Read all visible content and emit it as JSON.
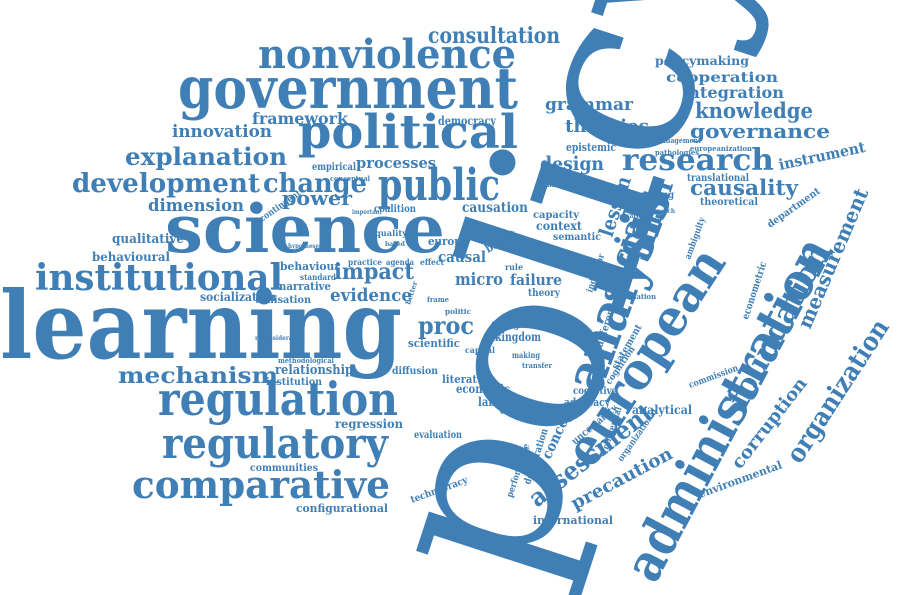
{
  "color": "#3f7fb5",
  "words": [
    {
      "id": "policy",
      "text": "policy"
    },
    {
      "id": "learning",
      "text": "learning"
    },
    {
      "id": "science",
      "text": "science"
    },
    {
      "id": "government",
      "text": "government"
    },
    {
      "id": "nonviolence",
      "text": "nonviolence"
    },
    {
      "id": "political",
      "text": "political"
    },
    {
      "id": "public",
      "text": "public"
    },
    {
      "id": "institutional",
      "text": "institutional"
    },
    {
      "id": "regulation",
      "text": "regulation"
    },
    {
      "id": "regulatory",
      "text": "regulatory"
    },
    {
      "id": "comparative",
      "text": "comparative"
    },
    {
      "id": "development",
      "text": "development"
    },
    {
      "id": "change",
      "text": "change"
    },
    {
      "id": "explanation",
      "text": "explanation"
    },
    {
      "id": "mechanism",
      "text": "mechanism"
    },
    {
      "id": "innovation",
      "text": "innovation"
    },
    {
      "id": "framework",
      "text": "framework"
    },
    {
      "id": "consultation",
      "text": "consultation"
    },
    {
      "id": "research",
      "text": "research"
    },
    {
      "id": "knowledge",
      "text": "knowledge"
    },
    {
      "id": "governance",
      "text": "governance"
    },
    {
      "id": "integration",
      "text": "integration"
    },
    {
      "id": "cooperation",
      "text": "cooperation"
    },
    {
      "id": "policymaking",
      "text": "policymaking"
    },
    {
      "id": "causality",
      "text": "causality"
    },
    {
      "id": "instrument",
      "text": "instrument"
    },
    {
      "id": "analysis",
      "text": "analysis"
    },
    {
      "id": "european",
      "text": "european"
    },
    {
      "id": "administration",
      "text": "administration"
    },
    {
      "id": "foundation",
      "text": "foundation"
    },
    {
      "id": "measurement",
      "text": "measurement"
    },
    {
      "id": "organization",
      "text": "organization"
    },
    {
      "id": "corruption",
      "text": "corruption"
    },
    {
      "id": "assessment",
      "text": "assessment"
    },
    {
      "id": "precaution",
      "text": "precaution"
    },
    {
      "id": "social",
      "text": "social"
    },
    {
      "id": "union",
      "text": "union"
    },
    {
      "id": "lesson",
      "text": "lesson"
    },
    {
      "id": "grammar",
      "text": "grammar"
    },
    {
      "id": "theories",
      "text": "theories"
    },
    {
      "id": "design",
      "text": "design"
    },
    {
      "id": "processes",
      "text": "processes"
    },
    {
      "id": "dimension",
      "text": "dimension"
    },
    {
      "id": "power",
      "text": "power"
    },
    {
      "id": "impact",
      "text": "impact"
    },
    {
      "id": "evidence",
      "text": "evidence"
    },
    {
      "id": "proc",
      "text": "proc"
    },
    {
      "id": "qualitative",
      "text": "qualitative"
    },
    {
      "id": "behavioural",
      "text": "behavioural"
    },
    {
      "id": "socialization",
      "text": "socialization"
    },
    {
      "id": "behaviour",
      "text": "behaviour"
    },
    {
      "id": "narrative",
      "text": "narrative"
    },
    {
      "id": "utilisation",
      "text": "utilisation"
    },
    {
      "id": "relationship",
      "text": "relationship"
    },
    {
      "id": "institution",
      "text": "institution"
    },
    {
      "id": "regression",
      "text": "regression"
    },
    {
      "id": "communities",
      "text": "communities"
    },
    {
      "id": "configurational",
      "text": "configurational"
    },
    {
      "id": "evaluation",
      "text": "evaluation"
    },
    {
      "id": "technocracy",
      "text": "technocracy"
    },
    {
      "id": "democracy",
      "text": "democracy"
    },
    {
      "id": "empirical",
      "text": "empirical"
    },
    {
      "id": "coalition",
      "text": "coalition"
    },
    {
      "id": "contingent",
      "text": "contingent"
    },
    {
      "id": "causation",
      "text": "causation"
    },
    {
      "id": "context",
      "text": "context"
    },
    {
      "id": "capacity",
      "text": "capacity"
    },
    {
      "id": "semantic",
      "text": "semantic"
    },
    {
      "id": "europe",
      "text": "europe"
    },
    {
      "id": "causal",
      "text": "causal"
    },
    {
      "id": "micro",
      "text": "micro"
    },
    {
      "id": "failure",
      "text": "failure"
    },
    {
      "id": "theory",
      "text": "theory"
    },
    {
      "id": "scientific",
      "text": "scientific"
    },
    {
      "id": "kingdom",
      "text": "kingdom"
    },
    {
      "id": "diffusion",
      "text": "diffusion"
    },
    {
      "id": "economic",
      "text": "economic"
    },
    {
      "id": "literature",
      "text": "literature"
    },
    {
      "id": "language",
      "text": "language"
    },
    {
      "id": "challenge",
      "text": "challenge"
    },
    {
      "id": "ideologies",
      "text": "ideologies"
    },
    {
      "id": "concept",
      "text": "concept"
    },
    {
      "id": "uncertainty",
      "text": "uncertainty"
    },
    {
      "id": "advocacy",
      "text": "advocacy"
    },
    {
      "id": "cognitive",
      "text": "cognitive"
    },
    {
      "id": "performance",
      "text": "performance"
    },
    {
      "id": "deliberation",
      "text": "deliberation"
    },
    {
      "id": "international",
      "text": "international"
    },
    {
      "id": "analytical",
      "text": "analytical"
    },
    {
      "id": "referential",
      "text": "referential"
    },
    {
      "id": "organizational",
      "text": "organizational"
    },
    {
      "id": "environmental",
      "text": "environmental"
    },
    {
      "id": "commission",
      "text": "commission"
    },
    {
      "id": "econometric",
      "text": "econometric"
    },
    {
      "id": "department",
      "text": "department"
    },
    {
      "id": "theoretical",
      "text": "theoretical"
    },
    {
      "id": "translational",
      "text": "translational"
    },
    {
      "id": "ambiguity",
      "text": "ambiguity"
    },
    {
      "id": "epistemic",
      "text": "epistemic"
    },
    {
      "id": "powering",
      "text": "powering"
    },
    {
      "id": "management",
      "text": "management"
    },
    {
      "id": "europeanization",
      "text": "europeanization"
    },
    {
      "id": "pathologies",
      "text": "pathologies"
    },
    {
      "id": "hindrance",
      "text": "hindrance"
    },
    {
      "id": "statement",
      "text": "statement"
    },
    {
      "id": "cognition",
      "text": "cognition"
    },
    {
      "id": "indicator",
      "text": "indicator"
    },
    {
      "id": "different",
      "text": "different"
    },
    {
      "id": "brexit",
      "text": "brexit"
    },
    {
      "id": "quality",
      "text": "quality"
    },
    {
      "id": "practice",
      "text": "practice"
    },
    {
      "id": "agenda",
      "text": "agenda"
    },
    {
      "id": "effect",
      "text": "effect"
    },
    {
      "id": "conceptual",
      "text": "conceptual"
    },
    {
      "id": "standard",
      "text": "standard"
    },
    {
      "id": "methodological",
      "text": "methodological"
    },
    {
      "id": "finding",
      "text": "finding"
    },
    {
      "id": "capital",
      "text": "capital"
    },
    {
      "id": "making",
      "text": "making"
    },
    {
      "id": "transfer",
      "text": "transfer"
    },
    {
      "id": "politic",
      "text": "politic"
    },
    {
      "id": "frame",
      "text": "frame"
    },
    {
      "id": "relation",
      "text": "relation"
    },
    {
      "id": "strategy",
      "text": "strategy"
    },
    {
      "id": "approach",
      "text": "approach"
    },
    {
      "id": "hypotheses",
      "text": "hypotheses"
    },
    {
      "id": "reconsideration",
      "text": "reconsideration"
    },
    {
      "id": "important",
      "text": "important"
    },
    {
      "id": "based",
      "text": "based"
    },
    {
      "id": "better",
      "text": "better"
    },
    {
      "id": "rule",
      "text": "rule"
    }
  ]
}
